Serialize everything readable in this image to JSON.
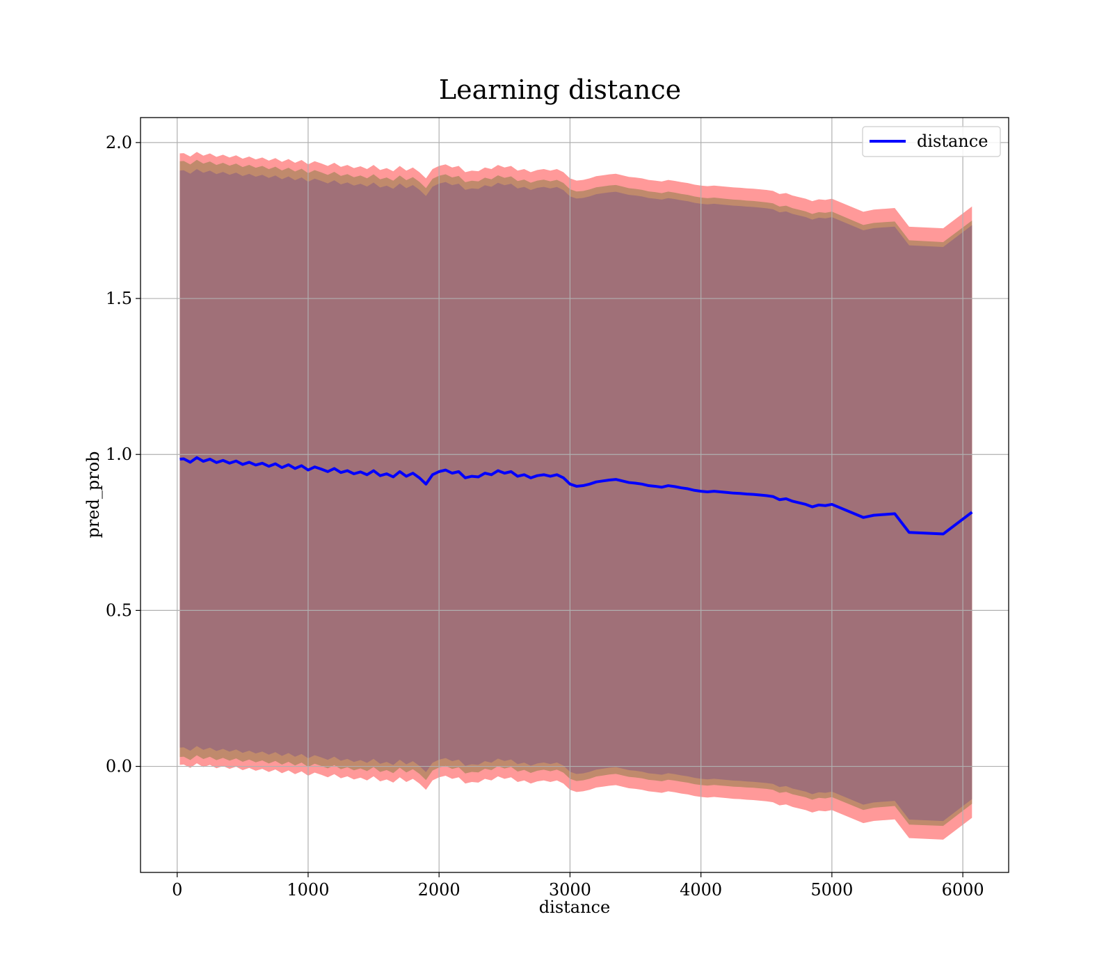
{
  "chart_data": {
    "type": "line",
    "title": "Learning distance",
    "xlabel": "distance",
    "ylabel": "pred_prob",
    "xlim": [
      -280,
      6350
    ],
    "ylim": [
      -0.34,
      2.08
    ],
    "x_ticks": [
      0,
      1000,
      2000,
      3000,
      4000,
      5000,
      6000
    ],
    "x_tick_labels": [
      "0",
      "1000",
      "2000",
      "3000",
      "4000",
      "5000",
      "6000"
    ],
    "y_ticks": [
      0.0,
      0.5,
      1.0,
      1.5,
      2.0
    ],
    "y_tick_labels": [
      "0.0",
      "0.5",
      "1.0",
      "1.5",
      "2.0"
    ],
    "grid": true,
    "legend": {
      "position": "top-right",
      "entries": [
        "distance"
      ]
    },
    "colors": {
      "line": "#0000ff",
      "band_outer": "#ff9999",
      "band_middle": "#c08a6c",
      "band_inner": "#a07078",
      "grid": "#b0b0b0"
    },
    "bands": [
      {
        "name": "",
        "half_width_start": 0.98,
        "half_width_end": 0.98,
        "color_key": "band_outer"
      },
      {
        "name": "",
        "half_width_start": 0.955,
        "half_width_end": 0.935,
        "color_key": "band_middle"
      },
      {
        "name": "",
        "half_width_start": 0.925,
        "half_width_end": 0.92,
        "color_key": "band_inner"
      }
    ],
    "series": [
      {
        "name": "distance",
        "x": [
          20,
          50,
          100,
          150,
          200,
          250,
          300,
          350,
          400,
          450,
          500,
          550,
          600,
          650,
          700,
          750,
          800,
          850,
          900,
          950,
          1000,
          1050,
          1100,
          1150,
          1200,
          1250,
          1300,
          1350,
          1400,
          1450,
          1500,
          1550,
          1600,
          1650,
          1700,
          1750,
          1800,
          1850,
          1900,
          1950,
          2000,
          2050,
          2100,
          2150,
          2200,
          2250,
          2300,
          2350,
          2400,
          2450,
          2500,
          2550,
          2600,
          2650,
          2700,
          2750,
          2800,
          2850,
          2900,
          2950,
          3000,
          3050,
          3100,
          3150,
          3200,
          3250,
          3300,
          3350,
          3400,
          3450,
          3500,
          3550,
          3600,
          3650,
          3700,
          3750,
          3800,
          3850,
          3900,
          3950,
          4000,
          4050,
          4100,
          4150,
          4200,
          4250,
          4300,
          4350,
          4400,
          4450,
          4500,
          4550,
          4600,
          4650,
          4700,
          4750,
          4800,
          4850,
          4900,
          4950,
          5000,
          5240,
          5320,
          5480,
          5590,
          5850,
          6070
        ],
        "values": [
          0.985,
          0.986,
          0.975,
          0.99,
          0.978,
          0.985,
          0.974,
          0.981,
          0.972,
          0.979,
          0.968,
          0.975,
          0.966,
          0.972,
          0.962,
          0.97,
          0.958,
          0.967,
          0.955,
          0.964,
          0.95,
          0.96,
          0.953,
          0.945,
          0.955,
          0.942,
          0.948,
          0.938,
          0.944,
          0.935,
          0.948,
          0.932,
          0.938,
          0.928,
          0.945,
          0.93,
          0.94,
          0.925,
          0.905,
          0.935,
          0.945,
          0.95,
          0.94,
          0.945,
          0.925,
          0.93,
          0.928,
          0.94,
          0.935,
          0.948,
          0.94,
          0.945,
          0.93,
          0.935,
          0.925,
          0.932,
          0.935,
          0.93,
          0.935,
          0.925,
          0.905,
          0.898,
          0.9,
          0.905,
          0.912,
          0.915,
          0.918,
          0.92,
          0.915,
          0.91,
          0.908,
          0.905,
          0.9,
          0.898,
          0.895,
          0.9,
          0.897,
          0.893,
          0.89,
          0.885,
          0.882,
          0.88,
          0.882,
          0.88,
          0.878,
          0.876,
          0.875,
          0.873,
          0.872,
          0.87,
          0.868,
          0.865,
          0.855,
          0.858,
          0.85,
          0.845,
          0.84,
          0.832,
          0.838,
          0.836,
          0.84,
          0.798,
          0.805,
          0.81,
          0.75,
          0.745,
          0.815
        ]
      }
    ]
  }
}
